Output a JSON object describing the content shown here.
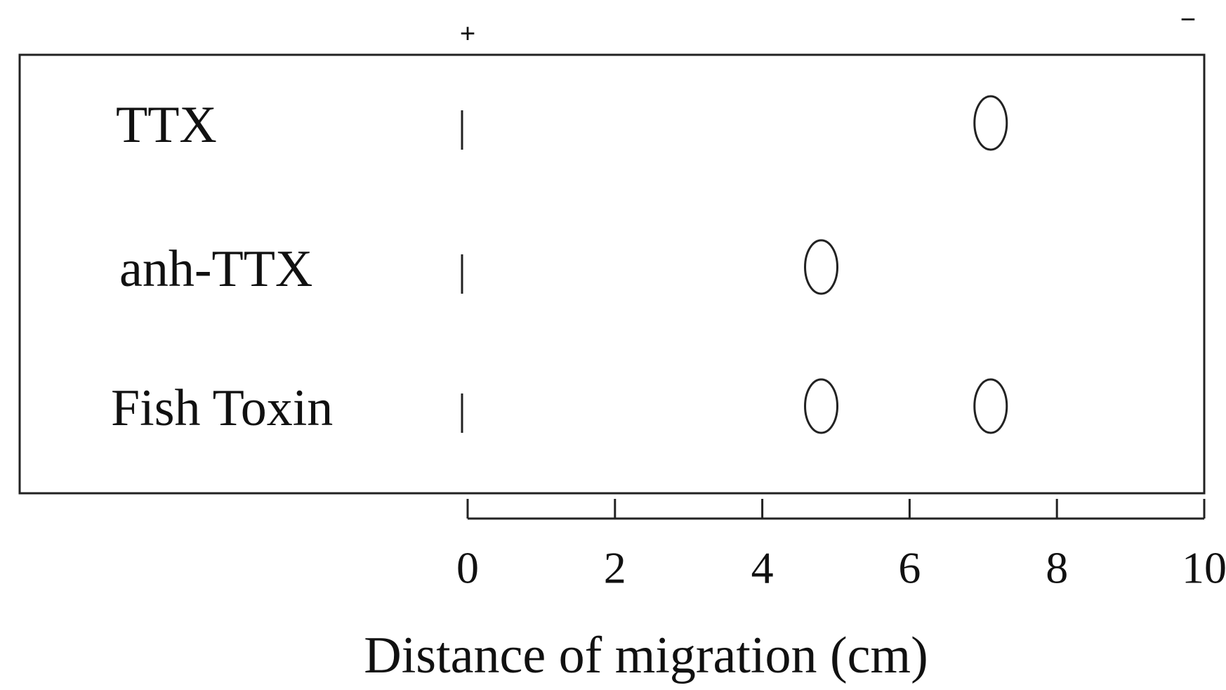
{
  "chart_data": {
    "type": "electrophoresis",
    "anode_label": "+",
    "cathode_label": "−",
    "x_label": "Distance of migration (cm)",
    "lanes": [
      {
        "label": "TTX",
        "spots": [
          7.1
        ]
      },
      {
        "label": "anh-TTX",
        "spots": [
          4.8
        ]
      },
      {
        "label": "Fish Toxin",
        "spots": [
          4.8,
          7.1
        ]
      }
    ],
    "xlim": [
      0,
      10
    ],
    "xticks": [
      0,
      2,
      4,
      6,
      8,
      10
    ]
  }
}
